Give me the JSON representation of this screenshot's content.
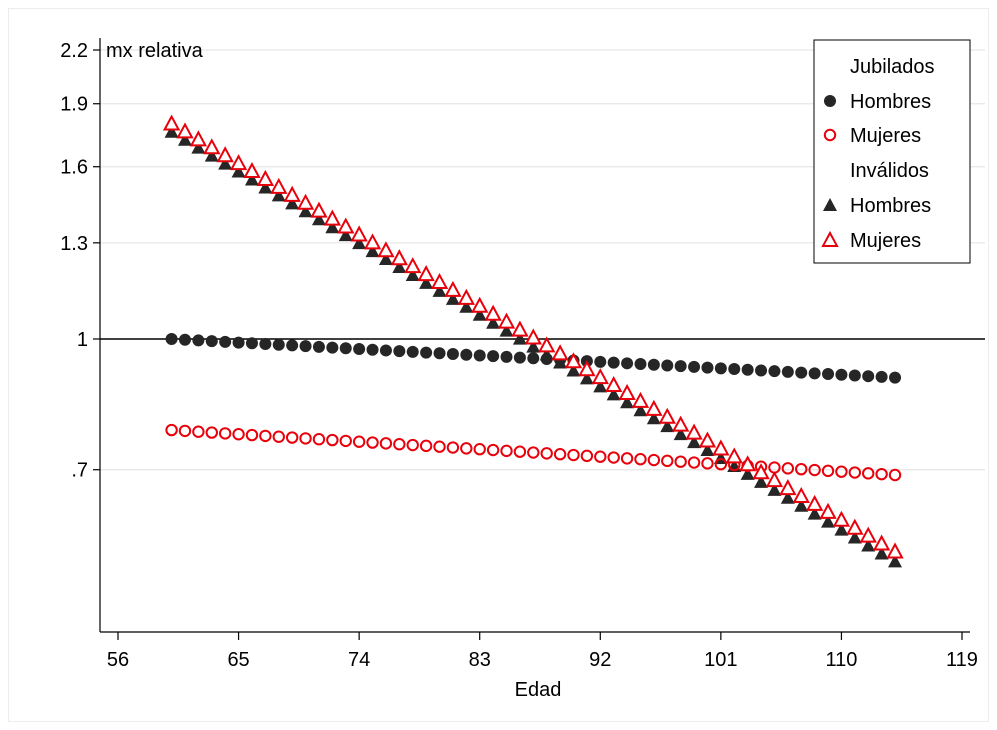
{
  "chart_data": {
    "type": "scatter",
    "title": "",
    "xlabel": "Edad",
    "ylabel": "mx relativa",
    "xlim": [
      55,
      120
    ],
    "ylim": [
      0.54,
      2.3
    ],
    "y_scale": "log",
    "x_ticks": [
      56,
      65,
      74,
      83,
      92,
      101,
      110,
      119
    ],
    "y_ticks": [
      {
        "value": 0.7,
        "label": ".7"
      },
      {
        "value": 1,
        "label": "1"
      },
      {
        "value": 1.3,
        "label": "1.3"
      },
      {
        "value": 1.6,
        "label": "1.6"
      },
      {
        "value": 1.9,
        "label": "1.9"
      },
      {
        "value": 2.2,
        "label": "2.2"
      }
    ],
    "reference_line": {
      "y": 1
    },
    "grid": "horizontal",
    "legend": {
      "position": "top-right",
      "groups": [
        {
          "title": "Jubilados",
          "entries": [
            {
              "label": "Hombres",
              "series": "jub_h"
            },
            {
              "label": "Mujeres",
              "series": "jub_m"
            }
          ]
        },
        {
          "title": "Inválidos",
          "entries": [
            {
              "label": "Hombres",
              "series": "inv_h"
            },
            {
              "label": "Mujeres",
              "series": "inv_m"
            }
          ]
        }
      ]
    },
    "x": [
      60,
      61,
      62,
      63,
      64,
      65,
      66,
      67,
      68,
      69,
      70,
      71,
      72,
      73,
      74,
      75,
      76,
      77,
      78,
      79,
      80,
      81,
      82,
      83,
      84,
      85,
      86,
      87,
      88,
      89,
      90,
      91,
      92,
      93,
      94,
      95,
      96,
      97,
      98,
      99,
      100,
      101,
      102,
      103,
      104,
      105,
      106,
      107,
      108,
      109,
      110,
      111,
      112,
      113,
      114
    ],
    "series": [
      {
        "id": "jub_h",
        "group": "Jubilados",
        "marker": "circle-filled",
        "color": "#262626",
        "start": 1.0,
        "end": 0.9
      },
      {
        "id": "jub_m",
        "group": "Jubilados",
        "marker": "circle-hollow",
        "color": "#e8000b",
        "start": 0.78,
        "end": 0.69
      },
      {
        "id": "inv_h",
        "group": "Inválidos",
        "marker": "triangle-filled",
        "color": "#262626",
        "start": 1.76,
        "end": 0.545
      },
      {
        "id": "inv_m",
        "group": "Inválidos",
        "marker": "triangle-hollow",
        "color": "#e8000b",
        "start": 1.8,
        "end": 0.56
      }
    ]
  }
}
